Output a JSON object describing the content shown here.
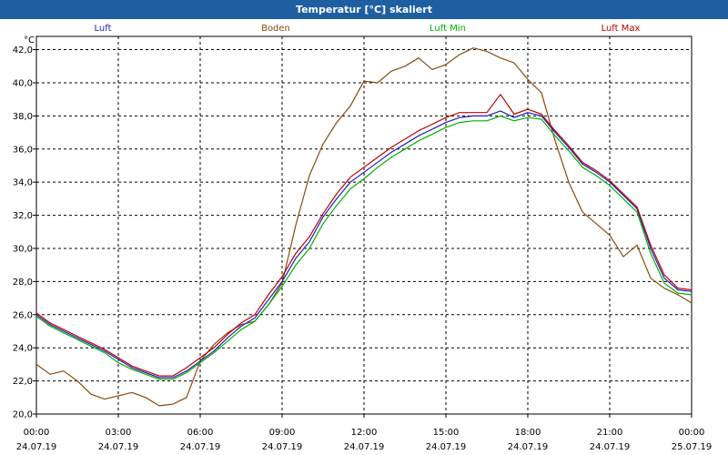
{
  "window": {
    "title": "Temperatur [°C] skaliert"
  },
  "chart_data": {
    "type": "line",
    "title": "Temperatur [°C] skaliert",
    "ylabel": "°C",
    "xlabel": "",
    "ylim": [
      20,
      42.8
    ],
    "xlim": [
      0,
      24
    ],
    "grid": true,
    "legend_position": "top",
    "yticks": [
      "20,0",
      "22,0",
      "24,0",
      "26,0",
      "28,0",
      "30,0",
      "32,0",
      "34,0",
      "36,0",
      "38,0",
      "40,0",
      "42,0"
    ],
    "ytick_values": [
      20,
      22,
      24,
      26,
      28,
      30,
      32,
      34,
      36,
      38,
      40,
      42
    ],
    "xticks": [
      {
        "value": 0,
        "time": "00:00",
        "date": "24.07.19"
      },
      {
        "value": 3,
        "time": "03:00",
        "date": "24.07.19"
      },
      {
        "value": 6,
        "time": "06:00",
        "date": "24.07.19"
      },
      {
        "value": 9,
        "time": "09:00",
        "date": "24.07.19"
      },
      {
        "value": 12,
        "time": "12:00",
        "date": "24.07.19"
      },
      {
        "value": 15,
        "time": "15:00",
        "date": "24.07.19"
      },
      {
        "value": 18,
        "time": "18:00",
        "date": "24.07.19"
      },
      {
        "value": 21,
        "time": "21:00",
        "date": "24.07.19"
      },
      {
        "value": 24,
        "time": "00:00",
        "date": "25.07.19"
      }
    ],
    "x": [
      0,
      0.5,
      1,
      1.5,
      2,
      2.5,
      3,
      3.5,
      4,
      4.5,
      5,
      5.5,
      6,
      6.5,
      7,
      7.5,
      8,
      8.5,
      9,
      9.5,
      10,
      10.5,
      11,
      11.5,
      12,
      12.5,
      13,
      13.5,
      14,
      14.5,
      15,
      15.5,
      16,
      16.5,
      17,
      17.5,
      18,
      18.5,
      19,
      19.5,
      20,
      20.5,
      21,
      21.5,
      22,
      22.5,
      23,
      23.5,
      24
    ],
    "series": [
      {
        "name": "Luft",
        "color": "#2020c0",
        "values": [
          26.0,
          25.4,
          25.0,
          24.6,
          24.2,
          23.8,
          23.3,
          22.8,
          22.5,
          22.2,
          22.2,
          22.6,
          23.2,
          23.8,
          24.6,
          25.3,
          25.8,
          26.9,
          28.0,
          29.4,
          30.4,
          31.9,
          33.0,
          34.0,
          34.6,
          35.2,
          35.8,
          36.3,
          36.8,
          37.2,
          37.6,
          37.9,
          38.0,
          38.0,
          38.3,
          37.9,
          38.2,
          38.0,
          37.0,
          36.1,
          35.1,
          34.6,
          34.0,
          33.2,
          32.4,
          30.0,
          28.2,
          27.5,
          27.4
        ]
      },
      {
        "name": "Boden",
        "color": "#8b4a0f",
        "values": [
          23.0,
          22.4,
          22.6,
          22.0,
          21.2,
          20.9,
          21.1,
          21.3,
          21.0,
          20.5,
          20.6,
          21.0,
          23.2,
          24.2,
          24.9,
          25.4,
          25.6,
          26.6,
          27.9,
          31.4,
          34.4,
          36.3,
          37.6,
          38.6,
          40.1,
          40.0,
          40.7,
          41.0,
          41.5,
          40.8,
          41.1,
          41.7,
          42.1,
          41.9,
          41.5,
          41.2,
          40.2,
          39.4,
          36.5,
          34.0,
          32.2,
          31.5,
          30.8,
          29.5,
          30.2,
          28.2,
          27.6,
          27.2,
          26.7
        ]
      },
      {
        "name": "Luft Min",
        "color": "#00b000",
        "values": [
          25.9,
          25.3,
          24.9,
          24.5,
          24.1,
          23.7,
          23.1,
          22.7,
          22.4,
          22.1,
          22.1,
          22.5,
          23.1,
          23.7,
          24.4,
          25.1,
          25.6,
          26.6,
          27.7,
          29.0,
          30.0,
          31.5,
          32.6,
          33.6,
          34.2,
          34.9,
          35.5,
          36.0,
          36.5,
          36.9,
          37.3,
          37.6,
          37.7,
          37.7,
          38.0,
          37.7,
          37.9,
          37.8,
          36.8,
          35.9,
          34.9,
          34.4,
          33.8,
          33.0,
          32.2,
          29.7,
          27.9,
          27.3,
          27.2
        ]
      },
      {
        "name": "Luft Max",
        "color": "#c00000",
        "values": [
          26.1,
          25.5,
          25.1,
          24.7,
          24.3,
          23.9,
          23.4,
          22.9,
          22.6,
          22.3,
          22.3,
          22.8,
          23.4,
          24.0,
          24.8,
          25.5,
          26.0,
          27.2,
          28.3,
          29.7,
          30.7,
          32.1,
          33.3,
          34.3,
          34.9,
          35.5,
          36.1,
          36.6,
          37.1,
          37.5,
          37.9,
          38.2,
          38.2,
          38.2,
          39.3,
          38.1,
          38.4,
          38.1,
          37.1,
          36.2,
          35.2,
          34.7,
          34.1,
          33.3,
          32.5,
          30.2,
          28.4,
          27.6,
          27.5
        ]
      }
    ]
  }
}
